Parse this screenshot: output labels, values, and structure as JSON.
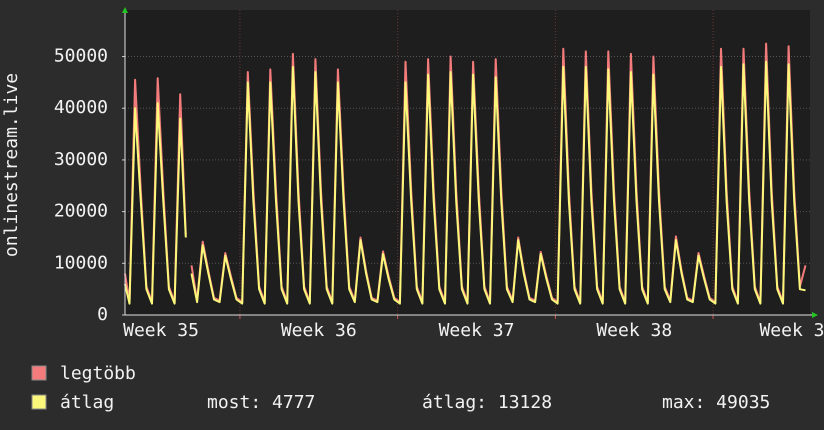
{
  "chart_data": {
    "type": "line",
    "ylabel": "onlinestream.live",
    "ylim": [
      0,
      59000
    ],
    "yticks": [
      0,
      10000,
      20000,
      30000,
      40000,
      50000
    ],
    "xlim": [
      1.9,
      32.3
    ],
    "xticks": [
      {
        "value": 3.5,
        "label": "Week 35"
      },
      {
        "value": 10.5,
        "label": "Week 36"
      },
      {
        "value": 17.5,
        "label": "Week 37"
      },
      {
        "value": 24.5,
        "label": "Week 38"
      },
      {
        "value": 31.5,
        "label": "Week 3"
      }
    ],
    "xgrid": [
      7,
      14,
      21,
      28
    ],
    "grid": true,
    "x": [
      1.9,
      2.1,
      2.35,
      2.6,
      2.85,
      3.1,
      3.35,
      3.6,
      3.85,
      4.1,
      4.35,
      4.6,
      4.7,
      4.85,
      5.1,
      5.35,
      5.6,
      5.85,
      6.1,
      6.35,
      6.6,
      6.85,
      7.1,
      7.35,
      7.6,
      7.85,
      8.1,
      8.35,
      8.6,
      8.85,
      9.1,
      9.35,
      9.6,
      9.85,
      10.1,
      10.35,
      10.6,
      10.85,
      11.1,
      11.35,
      11.6,
      11.85,
      12.1,
      12.35,
      12.6,
      12.85,
      13.1,
      13.35,
      13.6,
      13.85,
      14.1,
      14.35,
      14.6,
      14.85,
      15.1,
      15.35,
      15.6,
      15.85,
      16.1,
      16.35,
      16.6,
      16.85,
      17.1,
      17.35,
      17.6,
      17.85,
      18.1,
      18.35,
      18.6,
      18.85,
      19.1,
      19.35,
      19.6,
      19.85,
      20.1,
      20.35,
      20.6,
      20.85,
      21.1,
      21.35,
      21.6,
      21.85,
      22.1,
      22.35,
      22.6,
      22.85,
      23.1,
      23.35,
      23.6,
      23.85,
      24.1,
      24.35,
      24.6,
      24.85,
      25.1,
      25.35,
      25.6,
      25.85,
      26.1,
      26.35,
      26.6,
      26.85,
      27.1,
      27.35,
      27.6,
      27.85,
      28.1,
      28.35,
      28.6,
      28.85,
      29.1,
      29.35,
      29.6,
      29.85,
      30.1,
      30.35,
      30.6,
      30.85,
      31.1,
      31.35,
      31.6,
      31.85,
      32.1
    ],
    "series": [
      {
        "name": "legtöbb",
        "color": "#f47b7b",
        "values": [
          8000,
          2500,
          45500,
          24000,
          5500,
          2500,
          45800,
          24000,
          5500,
          2500,
          42700,
          15500,
          null,
          9600,
          2800,
          14200,
          8500,
          3300,
          2800,
          12000,
          7500,
          3300,
          2500,
          47000,
          24000,
          5500,
          2500,
          47500,
          24000,
          5500,
          2500,
          50500,
          24000,
          5500,
          2500,
          49500,
          24000,
          5500,
          2500,
          47500,
          24000,
          5500,
          2800,
          15000,
          8500,
          3300,
          2800,
          12300,
          7500,
          3300,
          2500,
          49000,
          24000,
          5500,
          2500,
          49500,
          24000,
          5500,
          2500,
          50000,
          24000,
          5500,
          2500,
          49000,
          24000,
          5500,
          2500,
          49500,
          24000,
          5500,
          2800,
          15000,
          8500,
          3300,
          2800,
          12200,
          7500,
          3300,
          2500,
          51500,
          24000,
          5500,
          2500,
          51000,
          24000,
          5500,
          2500,
          51000,
          24000,
          5500,
          2500,
          50500,
          24000,
          5500,
          2500,
          50000,
          24000,
          5500,
          2800,
          15200,
          8500,
          3300,
          2800,
          12000,
          7500,
          3300,
          2500,
          51500,
          24000,
          5500,
          2500,
          51500,
          24000,
          5500,
          2500,
          52500,
          24000,
          5500,
          2500,
          52000,
          24000,
          5500,
          9600
        ]
      },
      {
        "name": "átlag",
        "color": "#fbf77a",
        "values": [
          6000,
          2200,
          40000,
          22000,
          5000,
          2200,
          41000,
          22000,
          5000,
          2200,
          38000,
          15000,
          null,
          8000,
          2500,
          13500,
          8000,
          3000,
          2500,
          11500,
          7000,
          3000,
          2200,
          45000,
          22000,
          5000,
          2200,
          45000,
          22000,
          5000,
          2200,
          48000,
          22000,
          5000,
          2200,
          47000,
          22000,
          5000,
          2200,
          45000,
          22000,
          5000,
          2500,
          14500,
          8000,
          3000,
          2500,
          11800,
          7000,
          3000,
          2200,
          45000,
          22000,
          5000,
          2200,
          46500,
          22000,
          5000,
          2200,
          47000,
          22000,
          5000,
          2200,
          46500,
          22000,
          5000,
          2200,
          46000,
          22000,
          5000,
          2500,
          14500,
          8000,
          3000,
          2500,
          11800,
          7000,
          3000,
          2200,
          48000,
          22000,
          5000,
          2200,
          48000,
          22000,
          5000,
          2200,
          47500,
          22000,
          5000,
          2200,
          47000,
          22000,
          5000,
          2200,
          46500,
          22000,
          5000,
          2500,
          14500,
          8000,
          3000,
          2500,
          11500,
          7000,
          3000,
          2200,
          48000,
          22000,
          5000,
          2200,
          48500,
          22000,
          5000,
          2200,
          49000,
          22000,
          5000,
          2200,
          48500,
          22000,
          5000,
          4777
        ]
      }
    ],
    "stats": [
      "most: 4777",
      "átlag: 13128",
      "max: 49035"
    ]
  }
}
